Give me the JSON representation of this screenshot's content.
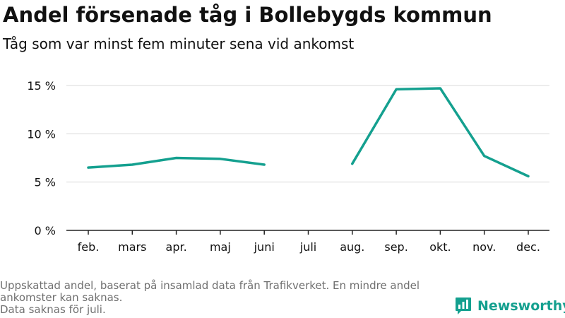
{
  "header": {
    "title": "Andel försenade tåg i Bollebygds kommun",
    "subtitle": "Tåg som var minst fem minuter sena vid ankomst"
  },
  "footer": {
    "note_1": "Uppskattad andel, baserat på insamlad data från Trafikverket. En mindre andel ankomster kan saknas.",
    "note_2": "Data saknas för juli."
  },
  "brand": {
    "name": "Newsworthy",
    "logo_icon": "newsworthy-bar-chart-logo-icon",
    "color": "#14a08f"
  },
  "chart_data": {
    "type": "line",
    "categories": [
      "feb.",
      "mars",
      "apr.",
      "maj",
      "juni",
      "juli",
      "aug.",
      "sep.",
      "okt.",
      "nov.",
      "dec."
    ],
    "series": [
      {
        "values": [
          6.5,
          6.8,
          7.5,
          7.4,
          6.8,
          null,
          6.9,
          14.6,
          14.7,
          7.7,
          5.6
        ],
        "color": "#14a08f"
      }
    ],
    "yticks": [
      0,
      5,
      10,
      15
    ],
    "ytick_labels": [
      "0 %",
      "5 %",
      "10 %",
      "15 %"
    ],
    "ylim": [
      0,
      15.8
    ],
    "grid": true,
    "missing": [
      "juli"
    ]
  }
}
